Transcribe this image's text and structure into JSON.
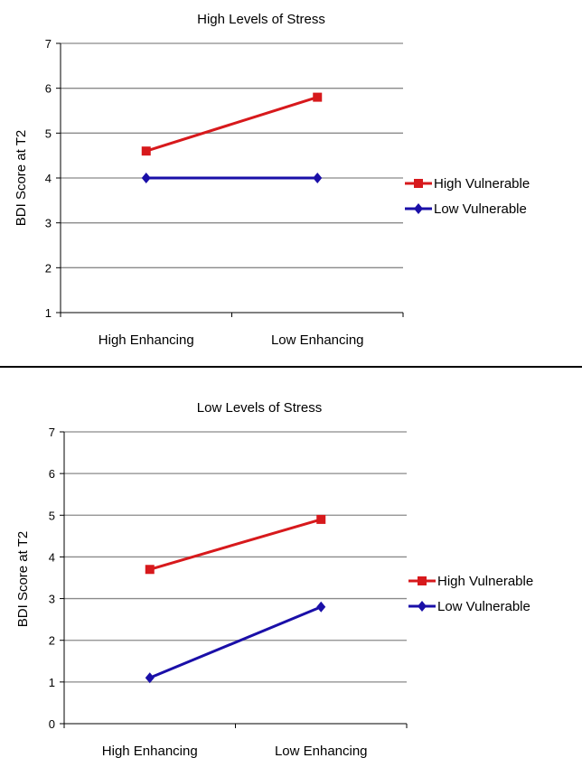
{
  "chart_data": [
    {
      "type": "line",
      "title": "High Levels of Stress",
      "xlabel": "",
      "ylabel": "BDI Score at T2",
      "categories": [
        "High Enhancing",
        "Low Enhancing"
      ],
      "ylim": [
        1,
        7
      ],
      "yticks": [
        "1",
        "2",
        "3",
        "4",
        "5",
        "6",
        "7"
      ],
      "grid": true,
      "legend": "right",
      "series": [
        {
          "name": "High Vulnerable",
          "values": [
            4.6,
            5.8
          ],
          "color": "#d7191c",
          "marker": "square"
        },
        {
          "name": "Low Vulnerable",
          "values": [
            4.0,
            4.0
          ],
          "color": "#1a0fa8",
          "marker": "diamond"
        }
      ]
    },
    {
      "type": "line",
      "title": "Low Levels of Stress",
      "xlabel": "",
      "ylabel": "BDI Score at T2",
      "categories": [
        "High Enhancing",
        "Low Enhancing"
      ],
      "ylim": [
        0,
        7
      ],
      "yticks": [
        "0",
        "1",
        "2",
        "3",
        "4",
        "5",
        "6",
        "7"
      ],
      "grid": true,
      "legend": "right",
      "series": [
        {
          "name": "High Vulnerable",
          "values": [
            3.7,
            4.9
          ],
          "color": "#d7191c",
          "marker": "square"
        },
        {
          "name": "Low Vulnerable",
          "values": [
            1.1,
            2.8
          ],
          "color": "#1a0fa8",
          "marker": "diamond"
        }
      ]
    }
  ]
}
